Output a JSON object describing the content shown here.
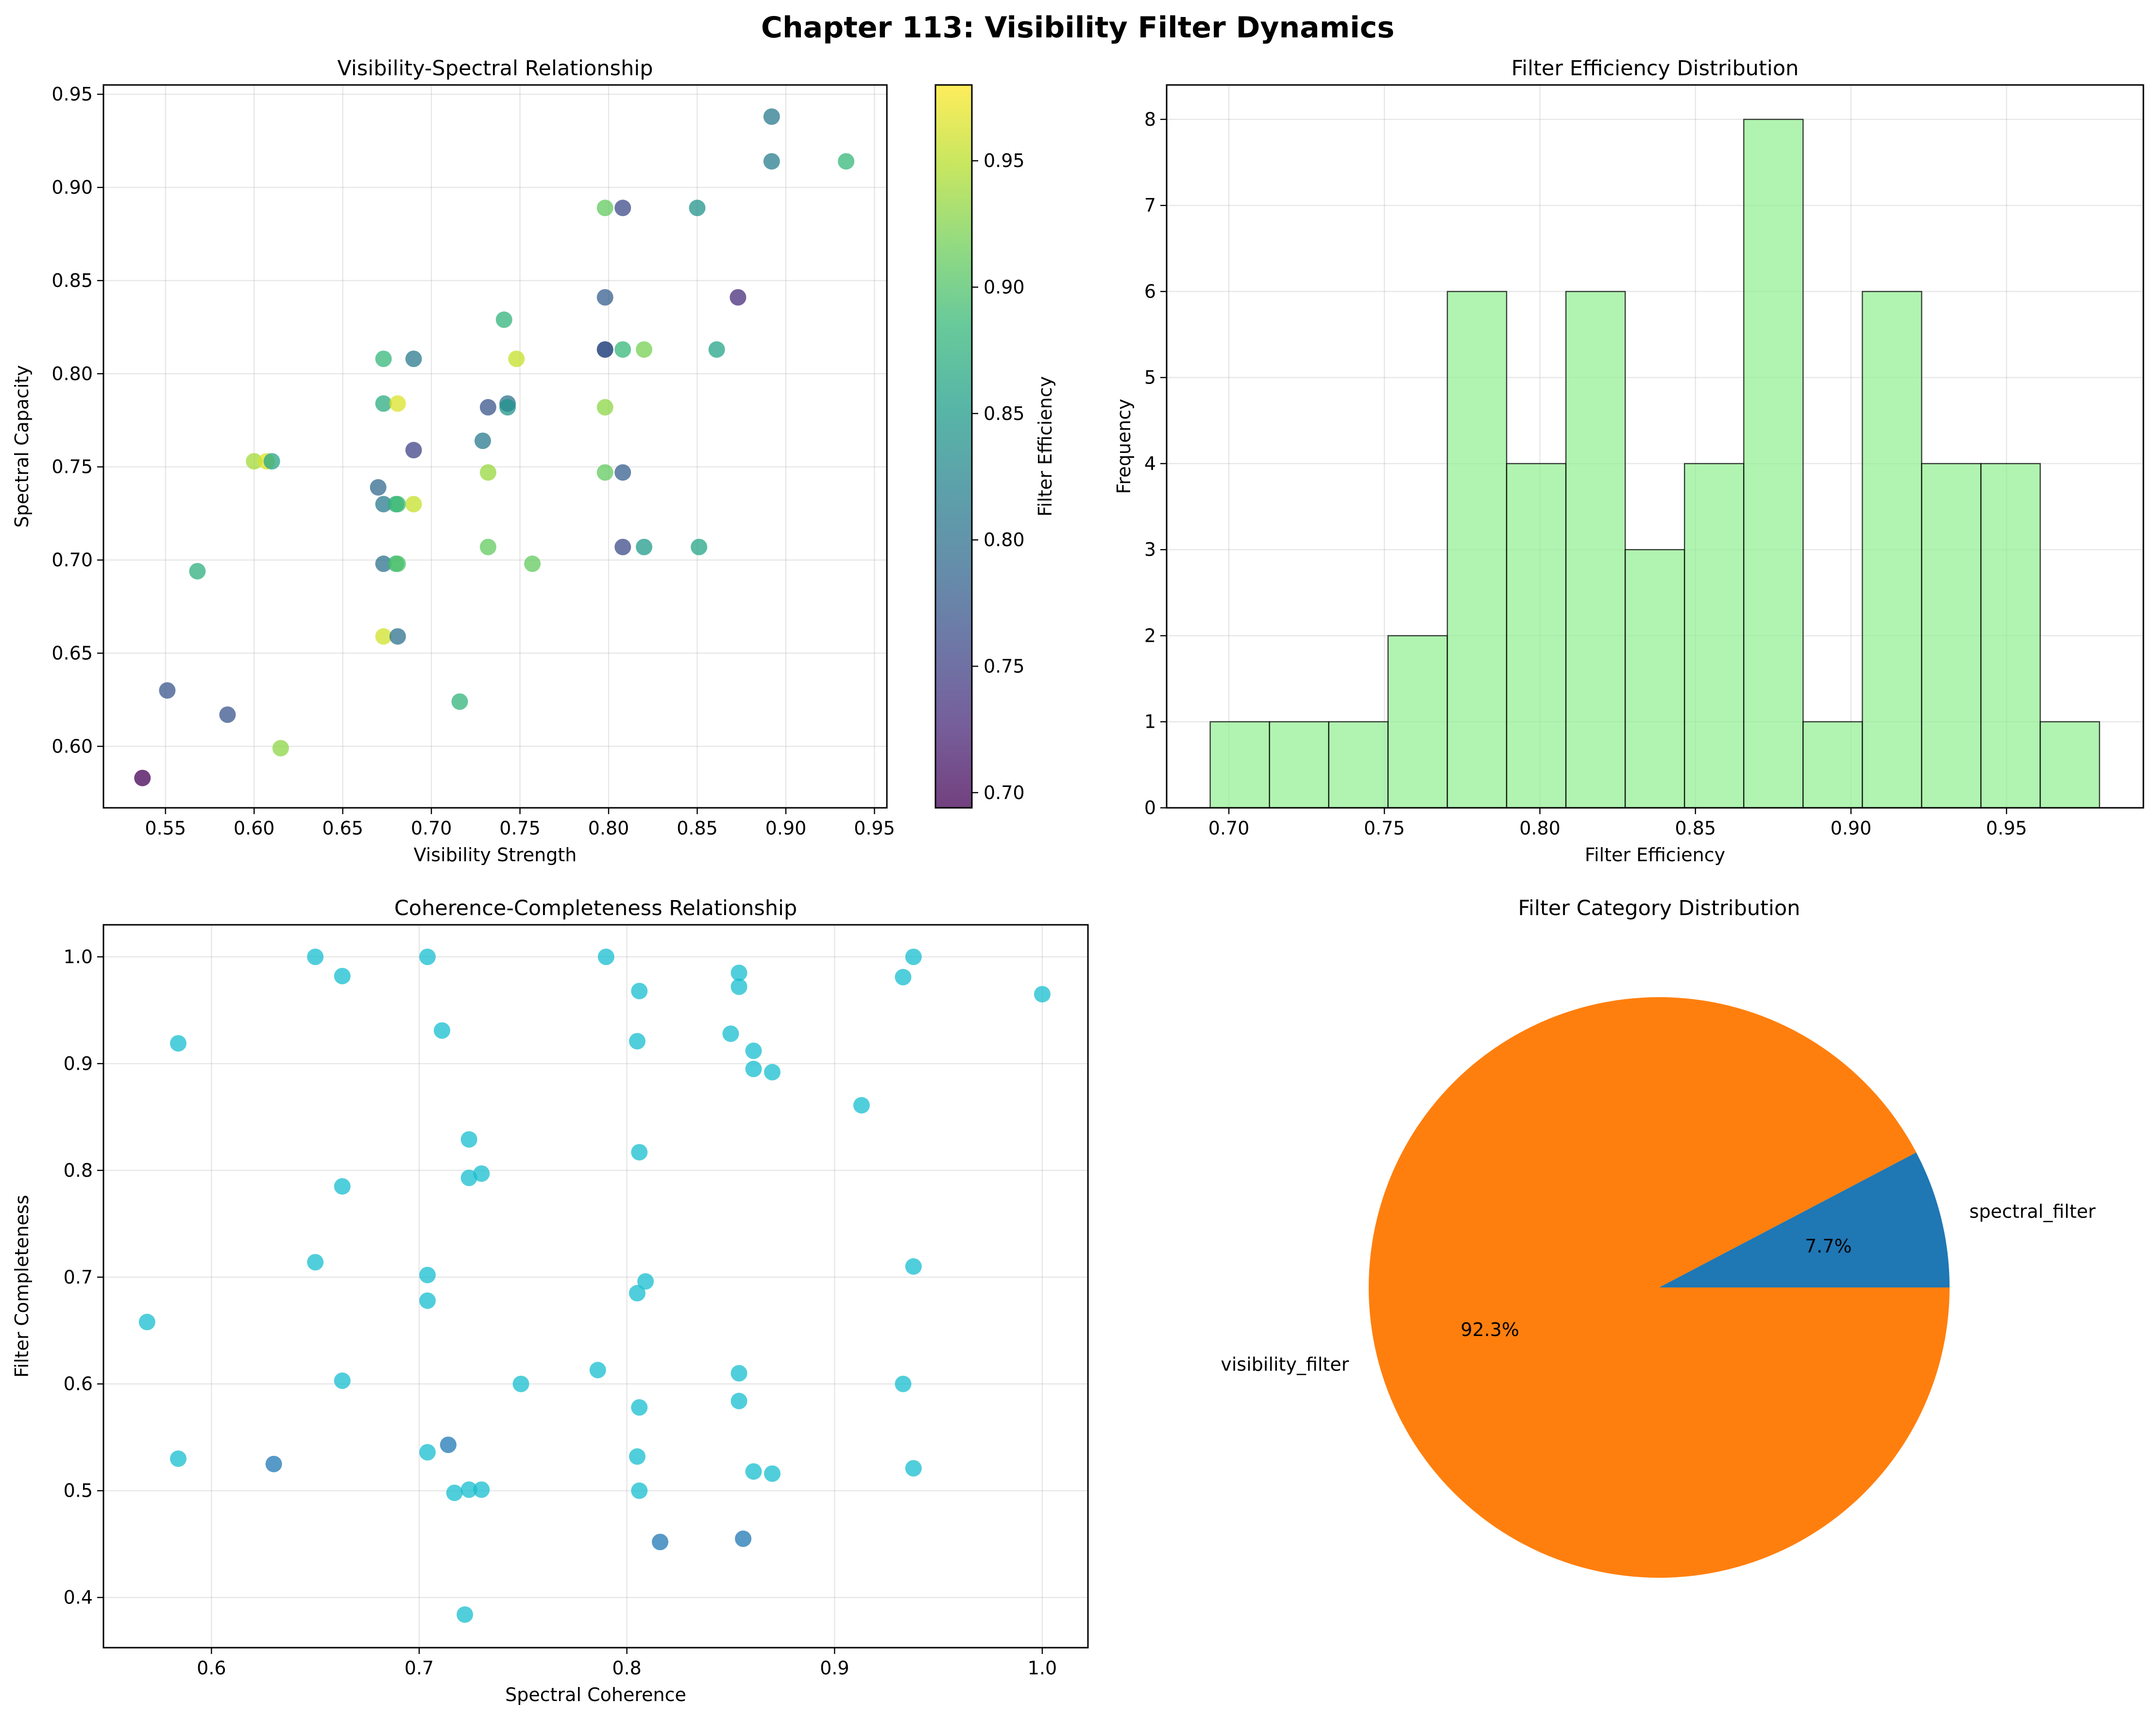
{
  "suptitle": "Chapter 113: Visibility Filter Dynamics",
  "colors": {
    "histogram_fill": "#90ee90",
    "scatter_cyan": "#17becf",
    "scatter_blue": "#1f77b4",
    "pie_orange": "#ff7f0e",
    "pie_blue": "#1f77b4",
    "grid": "#b0b0b0",
    "viridis": [
      "#440154",
      "#482878",
      "#3e4989",
      "#31688e",
      "#26828e",
      "#1f9e89",
      "#35b779",
      "#6ece58",
      "#b5de2b",
      "#fde725"
    ]
  },
  "chart_data": [
    {
      "type": "scatter",
      "title": "Visibility-Spectral Relationship",
      "xlabel": "Visibility Strength",
      "ylabel": "Spectral Capacity",
      "xlim": [
        0.515,
        0.957
      ],
      "ylim": [
        0.567,
        0.955
      ],
      "xticks": [
        "0.55",
        "0.60",
        "0.65",
        "0.70",
        "0.75",
        "0.80",
        "0.85",
        "0.90",
        "0.95"
      ],
      "yticks": [
        "0.60",
        "0.65",
        "0.70",
        "0.75",
        "0.80",
        "0.85",
        "0.90",
        "0.95"
      ],
      "colorbar": {
        "label": "Filter Efficiency",
        "range": [
          0.694,
          0.98
        ],
        "ticks": [
          "0.70",
          "0.75",
          "0.80",
          "0.85",
          "0.90",
          "0.95"
        ]
      },
      "points": [
        {
          "x": 0.537,
          "y": 0.583,
          "c": 0.694
        },
        {
          "x": 0.551,
          "y": 0.63,
          "c": 0.77
        },
        {
          "x": 0.568,
          "y": 0.694,
          "c": 0.875
        },
        {
          "x": 0.585,
          "y": 0.617,
          "c": 0.77
        },
        {
          "x": 0.6,
          "y": 0.753,
          "c": 0.94
        },
        {
          "x": 0.607,
          "y": 0.753,
          "c": 0.965
        },
        {
          "x": 0.61,
          "y": 0.753,
          "c": 0.86
        },
        {
          "x": 0.615,
          "y": 0.599,
          "c": 0.93
        },
        {
          "x": 0.67,
          "y": 0.739,
          "c": 0.79
        },
        {
          "x": 0.673,
          "y": 0.808,
          "c": 0.885
        },
        {
          "x": 0.673,
          "y": 0.784,
          "c": 0.87
        },
        {
          "x": 0.673,
          "y": 0.73,
          "c": 0.81
        },
        {
          "x": 0.673,
          "y": 0.698,
          "c": 0.8
        },
        {
          "x": 0.673,
          "y": 0.659,
          "c": 0.96
        },
        {
          "x": 0.68,
          "y": 0.73,
          "c": 0.875
        },
        {
          "x": 0.68,
          "y": 0.698,
          "c": 0.885
        },
        {
          "x": 0.681,
          "y": 0.784,
          "c": 0.965
        },
        {
          "x": 0.681,
          "y": 0.73,
          "c": 0.89
        },
        {
          "x": 0.681,
          "y": 0.698,
          "c": 0.9
        },
        {
          "x": 0.681,
          "y": 0.659,
          "c": 0.8
        },
        {
          "x": 0.69,
          "y": 0.808,
          "c": 0.81
        },
        {
          "x": 0.69,
          "y": 0.759,
          "c": 0.75
        },
        {
          "x": 0.69,
          "y": 0.73,
          "c": 0.955
        },
        {
          "x": 0.716,
          "y": 0.624,
          "c": 0.88
        },
        {
          "x": 0.729,
          "y": 0.764,
          "c": 0.81
        },
        {
          "x": 0.732,
          "y": 0.782,
          "c": 0.77
        },
        {
          "x": 0.732,
          "y": 0.747,
          "c": 0.935
        },
        {
          "x": 0.732,
          "y": 0.707,
          "c": 0.91
        },
        {
          "x": 0.741,
          "y": 0.829,
          "c": 0.88
        },
        {
          "x": 0.743,
          "y": 0.784,
          "c": 0.8
        },
        {
          "x": 0.743,
          "y": 0.782,
          "c": 0.84
        },
        {
          "x": 0.748,
          "y": 0.808,
          "c": 0.955
        },
        {
          "x": 0.757,
          "y": 0.698,
          "c": 0.91
        },
        {
          "x": 0.798,
          "y": 0.889,
          "c": 0.91
        },
        {
          "x": 0.798,
          "y": 0.841,
          "c": 0.78
        },
        {
          "x": 0.798,
          "y": 0.813,
          "c": 0.77
        },
        {
          "x": 0.798,
          "y": 0.813,
          "c": 0.77
        },
        {
          "x": 0.798,
          "y": 0.782,
          "c": 0.93
        },
        {
          "x": 0.798,
          "y": 0.747,
          "c": 0.91
        },
        {
          "x": 0.808,
          "y": 0.889,
          "c": 0.76
        },
        {
          "x": 0.808,
          "y": 0.813,
          "c": 0.885
        },
        {
          "x": 0.808,
          "y": 0.747,
          "c": 0.78
        },
        {
          "x": 0.808,
          "y": 0.707,
          "c": 0.76
        },
        {
          "x": 0.82,
          "y": 0.813,
          "c": 0.92
        },
        {
          "x": 0.82,
          "y": 0.707,
          "c": 0.85
        },
        {
          "x": 0.85,
          "y": 0.889,
          "c": 0.84
        },
        {
          "x": 0.851,
          "y": 0.707,
          "c": 0.86
        },
        {
          "x": 0.861,
          "y": 0.813,
          "c": 0.86
        },
        {
          "x": 0.873,
          "y": 0.841,
          "c": 0.73
        },
        {
          "x": 0.892,
          "y": 0.938,
          "c": 0.81
        },
        {
          "x": 0.892,
          "y": 0.914,
          "c": 0.815
        },
        {
          "x": 0.934,
          "y": 0.914,
          "c": 0.885
        }
      ]
    },
    {
      "type": "bar",
      "title": "Filter Efficiency Distribution",
      "xlabel": "Filter Efficiency",
      "ylabel": "Frequency",
      "xlim": [
        0.68,
        0.994
      ],
      "ylim": [
        0,
        8.4
      ],
      "xticks": [
        "0.70",
        "0.75",
        "0.80",
        "0.85",
        "0.90",
        "0.95"
      ],
      "yticks": [
        "0",
        "1",
        "2",
        "3",
        "4",
        "5",
        "6",
        "7",
        "8"
      ],
      "bin_start": 0.694,
      "bin_width": 0.01906,
      "values": [
        1,
        1,
        1,
        2,
        6,
        4,
        6,
        3,
        4,
        8,
        1,
        6,
        4,
        4,
        1
      ]
    },
    {
      "type": "scatter",
      "title": "Coherence-Completeness Relationship",
      "xlabel": "Spectral Coherence",
      "ylabel": "Filter Completeness",
      "xlim": [
        0.548,
        1.022
      ],
      "ylim": [
        0.353,
        1.03
      ],
      "xticks": [
        "0.6",
        "0.7",
        "0.8",
        "0.9",
        "1.0"
      ],
      "yticks": [
        "0.4",
        "0.5",
        "0.6",
        "0.7",
        "0.8",
        "0.9",
        "1.0"
      ],
      "points": [
        {
          "x": 0.569,
          "y": 0.658,
          "s": "cyan"
        },
        {
          "x": 0.584,
          "y": 0.919,
          "s": "cyan"
        },
        {
          "x": 0.584,
          "y": 0.53,
          "s": "cyan"
        },
        {
          "x": 0.63,
          "y": 0.525,
          "s": "blue"
        },
        {
          "x": 0.65,
          "y": 1.0,
          "s": "cyan"
        },
        {
          "x": 0.65,
          "y": 0.714,
          "s": "cyan"
        },
        {
          "x": 0.663,
          "y": 0.982,
          "s": "cyan"
        },
        {
          "x": 0.663,
          "y": 0.785,
          "s": "cyan"
        },
        {
          "x": 0.663,
          "y": 0.603,
          "s": "cyan"
        },
        {
          "x": 0.704,
          "y": 1.0,
          "s": "cyan"
        },
        {
          "x": 0.704,
          "y": 0.702,
          "s": "cyan"
        },
        {
          "x": 0.704,
          "y": 0.678,
          "s": "cyan"
        },
        {
          "x": 0.704,
          "y": 0.536,
          "s": "cyan"
        },
        {
          "x": 0.711,
          "y": 0.931,
          "s": "cyan"
        },
        {
          "x": 0.714,
          "y": 0.543,
          "s": "blue"
        },
        {
          "x": 0.717,
          "y": 0.498,
          "s": "cyan"
        },
        {
          "x": 0.722,
          "y": 0.384,
          "s": "cyan"
        },
        {
          "x": 0.724,
          "y": 0.829,
          "s": "cyan"
        },
        {
          "x": 0.724,
          "y": 0.793,
          "s": "cyan"
        },
        {
          "x": 0.724,
          "y": 0.501,
          "s": "cyan"
        },
        {
          "x": 0.73,
          "y": 0.797,
          "s": "cyan"
        },
        {
          "x": 0.73,
          "y": 0.501,
          "s": "cyan"
        },
        {
          "x": 0.749,
          "y": 0.6,
          "s": "cyan"
        },
        {
          "x": 0.786,
          "y": 0.613,
          "s": "cyan"
        },
        {
          "x": 0.79,
          "y": 1.0,
          "s": "cyan"
        },
        {
          "x": 0.805,
          "y": 0.921,
          "s": "cyan"
        },
        {
          "x": 0.805,
          "y": 0.685,
          "s": "cyan"
        },
        {
          "x": 0.805,
          "y": 0.532,
          "s": "cyan"
        },
        {
          "x": 0.806,
          "y": 0.968,
          "s": "cyan"
        },
        {
          "x": 0.806,
          "y": 0.817,
          "s": "cyan"
        },
        {
          "x": 0.806,
          "y": 0.578,
          "s": "cyan"
        },
        {
          "x": 0.806,
          "y": 0.5,
          "s": "cyan"
        },
        {
          "x": 0.809,
          "y": 0.696,
          "s": "cyan"
        },
        {
          "x": 0.816,
          "y": 0.452,
          "s": "blue"
        },
        {
          "x": 0.85,
          "y": 0.928,
          "s": "cyan"
        },
        {
          "x": 0.854,
          "y": 0.985,
          "s": "cyan"
        },
        {
          "x": 0.854,
          "y": 0.972,
          "s": "cyan"
        },
        {
          "x": 0.854,
          "y": 0.61,
          "s": "cyan"
        },
        {
          "x": 0.854,
          "y": 0.584,
          "s": "cyan"
        },
        {
          "x": 0.856,
          "y": 0.455,
          "s": "blue"
        },
        {
          "x": 0.861,
          "y": 0.912,
          "s": "cyan"
        },
        {
          "x": 0.861,
          "y": 0.895,
          "s": "cyan"
        },
        {
          "x": 0.861,
          "y": 0.518,
          "s": "cyan"
        },
        {
          "x": 0.87,
          "y": 0.892,
          "s": "cyan"
        },
        {
          "x": 0.87,
          "y": 0.516,
          "s": "cyan"
        },
        {
          "x": 0.913,
          "y": 0.861,
          "s": "cyan"
        },
        {
          "x": 0.933,
          "y": 0.981,
          "s": "cyan"
        },
        {
          "x": 0.933,
          "y": 0.6,
          "s": "cyan"
        },
        {
          "x": 0.938,
          "y": 1.0,
          "s": "cyan"
        },
        {
          "x": 0.938,
          "y": 0.71,
          "s": "cyan"
        },
        {
          "x": 0.938,
          "y": 0.521,
          "s": "cyan"
        },
        {
          "x": 1.0,
          "y": 0.965,
          "s": "cyan"
        }
      ]
    },
    {
      "type": "pie",
      "title": "Filter Category Distribution",
      "slices": [
        {
          "label": "spectral_filter",
          "value": 7.7,
          "pct_label": "7.7%",
          "color": "#1f77b4"
        },
        {
          "label": "visibility_filter",
          "value": 92.3,
          "pct_label": "92.3%",
          "color": "#ff7f0e"
        }
      ]
    }
  ]
}
